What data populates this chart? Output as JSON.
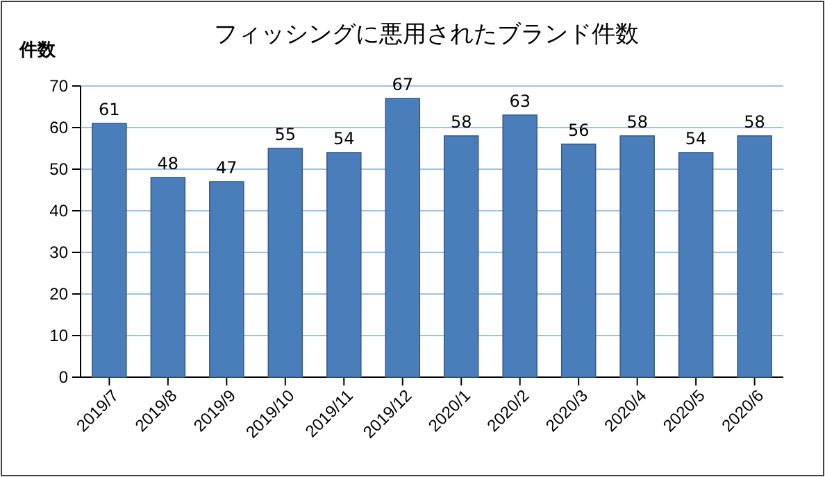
{
  "chart_data": {
    "type": "bar",
    "title": "フィッシングに悪用されたブランド件数",
    "ylabel": "件数",
    "categories": [
      "2019/7",
      "2019/8",
      "2019/9",
      "2019/10",
      "2019/11",
      "2019/12",
      "2020/1",
      "2020/2",
      "2020/3",
      "2020/4",
      "2020/5",
      "2020/6"
    ],
    "values": [
      61,
      48,
      47,
      55,
      54,
      67,
      58,
      63,
      56,
      58,
      54,
      58
    ],
    "color": "#4a7ebb",
    "ylim": [
      0,
      70
    ],
    "yticks": [
      0,
      10,
      20,
      30,
      40,
      50,
      60,
      70
    ],
    "grid": "y",
    "data_labels": true
  }
}
